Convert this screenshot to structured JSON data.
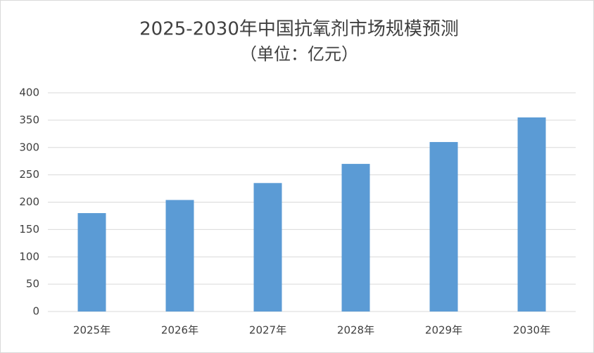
{
  "chart_data": {
    "type": "bar",
    "title": "2025-2030年中国抗氧剂市场规模预测",
    "subtitle": "（单位：亿元）",
    "categories": [
      "2025年",
      "2026年",
      "2027年",
      "2028年",
      "2029年",
      "2030年"
    ],
    "values": [
      180,
      204,
      235,
      270,
      310,
      355
    ],
    "color": "#5b9bd5",
    "ylim": [
      0,
      400
    ],
    "yticks": [
      0,
      50,
      100,
      150,
      200,
      250,
      300,
      350,
      400
    ],
    "grid": true
  }
}
